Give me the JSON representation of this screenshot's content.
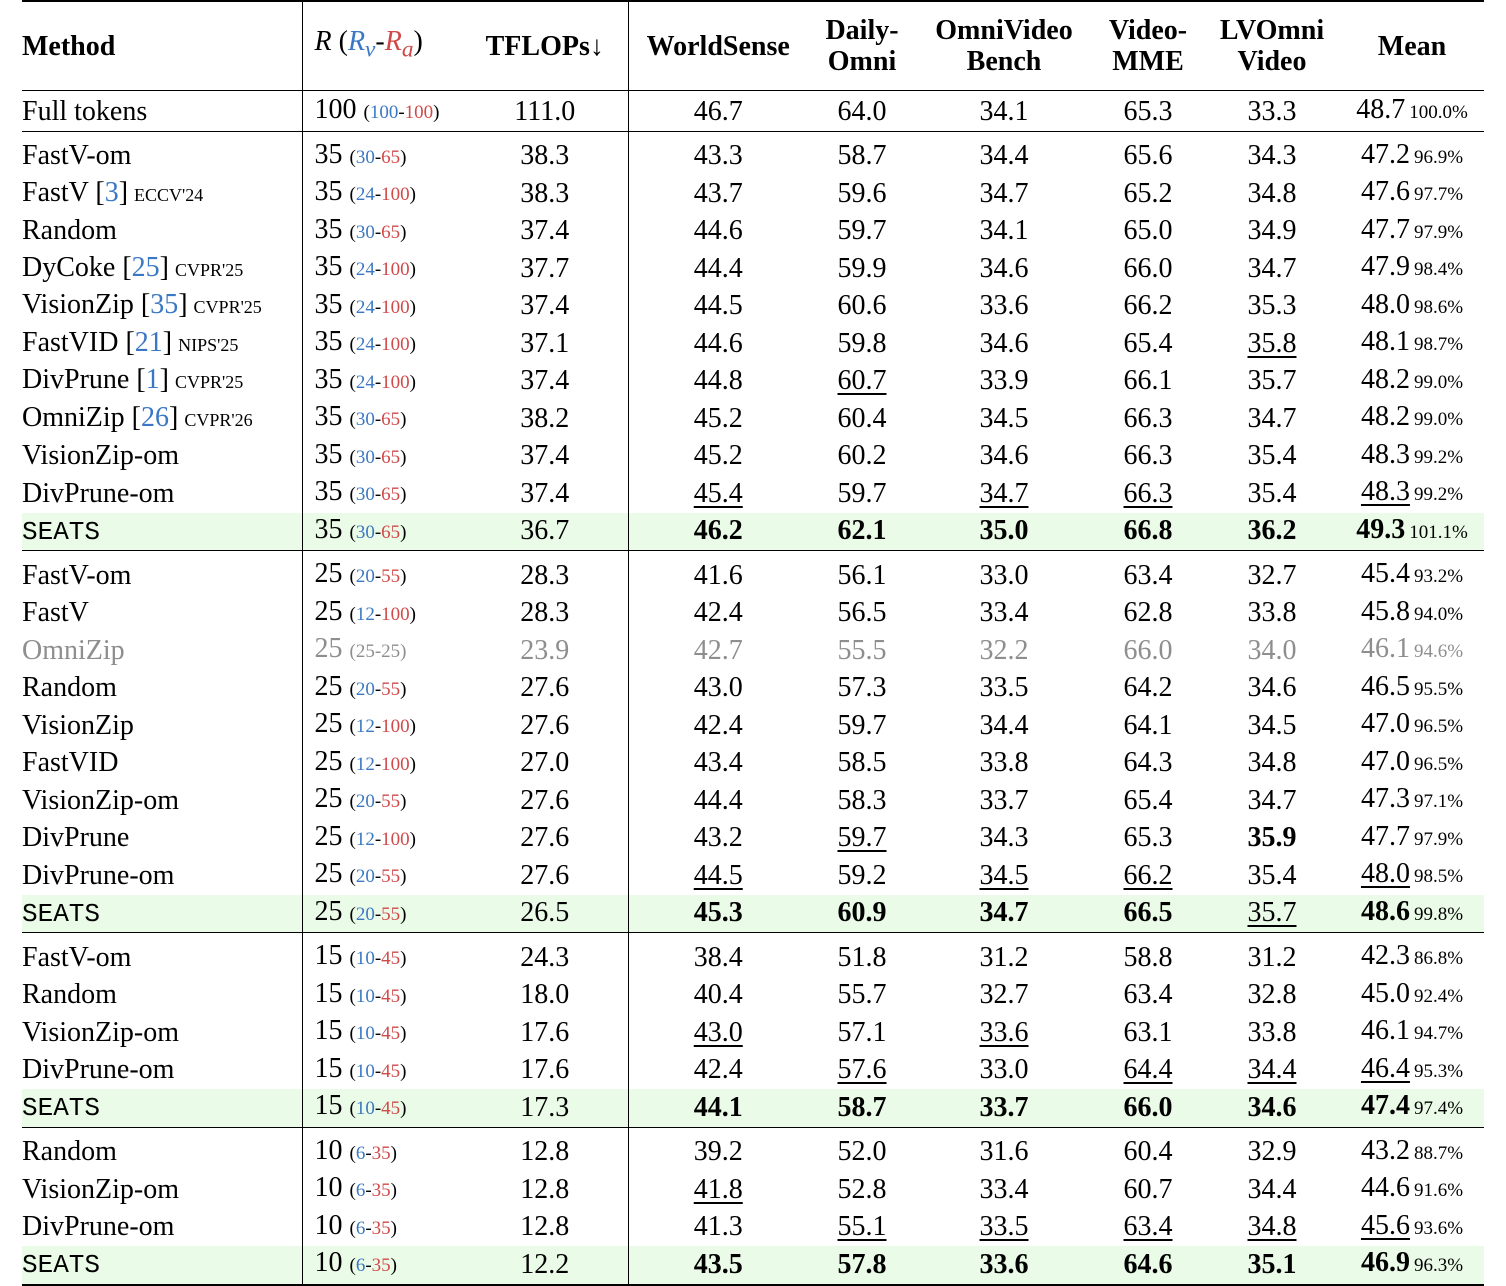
{
  "header": {
    "method": "Method",
    "r_label": "R",
    "rv_label": "R",
    "rv_sub": "v",
    "ra_label": "R",
    "ra_sub": "a",
    "tflops": "TFLOPs↓",
    "worldsense": "WorldSense",
    "dailyomni_1": "Daily-",
    "dailyomni_2": "Omni",
    "omnivideo_1": "OmniVideo",
    "omnivideo_2": "Bench",
    "videomme_1": "Video-",
    "videomme_2": "MME",
    "lvomni_1": "LVOmni",
    "lvomni_2": "Video",
    "mean": "Mean"
  },
  "full": {
    "method": "Full tokens",
    "r": "100",
    "rv": "100",
    "ra": "100",
    "tflops": "111.0",
    "ws": "46.7",
    "do": "64.0",
    "ob": "34.1",
    "vm": "65.3",
    "lv": "33.3",
    "mean": "48.7",
    "pct": "100.0%"
  },
  "g35": [
    {
      "method": "FastV-om",
      "cite": "",
      "venue": "",
      "r": "35",
      "rv": "30",
      "ra": "65",
      "tflops": "38.3",
      "ws": "43.3",
      "do": "58.7",
      "ob": "34.4",
      "vm": "65.6",
      "lv": "34.3",
      "mean": "47.2",
      "pct": "96.9%"
    },
    {
      "method": "FastV",
      "cite": "3",
      "venue": "ECCV'24",
      "r": "35",
      "rv": "24",
      "ra": "100",
      "tflops": "38.3",
      "ws": "43.7",
      "do": "59.6",
      "ob": "34.7",
      "vm": "65.2",
      "lv": "34.8",
      "mean": "47.6",
      "pct": "97.7%"
    },
    {
      "method": "Random",
      "cite": "",
      "venue": "",
      "r": "35",
      "rv": "30",
      "ra": "65",
      "tflops": "37.4",
      "ws": "44.6",
      "do": "59.7",
      "ob": "34.1",
      "vm": "65.0",
      "lv": "34.9",
      "mean": "47.7",
      "pct": "97.9%"
    },
    {
      "method": "DyCoke",
      "cite": "25",
      "venue": "CVPR'25",
      "r": "35",
      "rv": "24",
      "ra": "100",
      "tflops": "37.7",
      "ws": "44.4",
      "do": "59.9",
      "ob": "34.6",
      "vm": "66.0",
      "lv": "34.7",
      "mean": "47.9",
      "pct": "98.4%"
    },
    {
      "method": "VisionZip",
      "cite": "35",
      "venue": "CVPR'25",
      "r": "35",
      "rv": "24",
      "ra": "100",
      "tflops": "37.4",
      "ws": "44.5",
      "do": "60.6",
      "ob": "33.6",
      "vm": "66.2",
      "lv": "35.3",
      "mean": "48.0",
      "pct": "98.6%"
    },
    {
      "method": "FastVID",
      "cite": "21",
      "venue": "NIPS'25",
      "r": "35",
      "rv": "24",
      "ra": "100",
      "tflops": "37.1",
      "ws": "44.6",
      "do": "59.8",
      "ob": "34.6",
      "vm": "65.4",
      "lv": "35.8",
      "mean": "48.1",
      "pct": "98.7%"
    },
    {
      "method": "DivPrune",
      "cite": "1",
      "venue": "CVPR'25",
      "r": "35",
      "rv": "24",
      "ra": "100",
      "tflops": "37.4",
      "ws": "44.8",
      "do": "60.7",
      "ob": "33.9",
      "vm": "66.1",
      "lv": "35.7",
      "mean": "48.2",
      "pct": "99.0%"
    },
    {
      "method": "OmniZip",
      "cite": "26",
      "venue": "CVPR'26",
      "r": "35",
      "rv": "30",
      "ra": "65",
      "tflops": "38.2",
      "ws": "45.2",
      "do": "60.4",
      "ob": "34.5",
      "vm": "66.3",
      "lv": "34.7",
      "mean": "48.2",
      "pct": "99.0%"
    },
    {
      "method": "VisionZip-om",
      "cite": "",
      "venue": "",
      "r": "35",
      "rv": "30",
      "ra": "65",
      "tflops": "37.4",
      "ws": "45.2",
      "do": "60.2",
      "ob": "34.6",
      "vm": "66.3",
      "lv": "35.4",
      "mean": "48.3",
      "pct": "99.2%"
    },
    {
      "method": "DivPrune-om",
      "cite": "",
      "venue": "",
      "r": "35",
      "rv": "30",
      "ra": "65",
      "tflops": "37.4",
      "ws": "45.4",
      "do": "59.7",
      "ob": "34.7",
      "vm": "66.3",
      "lv": "35.4",
      "mean": "48.3",
      "pct": "99.2%"
    },
    {
      "method": "SEATS",
      "cite": "",
      "venue": "",
      "r": "35",
      "rv": "30",
      "ra": "65",
      "tflops": "36.7",
      "ws": "46.2",
      "do": "62.1",
      "ob": "35.0",
      "vm": "66.8",
      "lv": "36.2",
      "mean": "49.3",
      "pct": "101.1%"
    }
  ],
  "g25": [
    {
      "method": "FastV-om",
      "r": "25",
      "rv": "20",
      "ra": "55",
      "tflops": "28.3",
      "ws": "41.6",
      "do": "56.1",
      "ob": "33.0",
      "vm": "63.4",
      "lv": "32.7",
      "mean": "45.4",
      "pct": "93.2%"
    },
    {
      "method": "FastV",
      "r": "25",
      "rv": "12",
      "ra": "100",
      "tflops": "28.3",
      "ws": "42.4",
      "do": "56.5",
      "ob": "33.4",
      "vm": "62.8",
      "lv": "33.8",
      "mean": "45.8",
      "pct": "94.0%"
    },
    {
      "method": "OmniZip",
      "r": "25",
      "rv": "25",
      "ra": "25",
      "tflops": "23.9",
      "ws": "42.7",
      "do": "55.5",
      "ob": "32.2",
      "vm": "66.0",
      "lv": "34.0",
      "mean": "46.1",
      "pct": "94.6%"
    },
    {
      "method": "Random",
      "r": "25",
      "rv": "20",
      "ra": "55",
      "tflops": "27.6",
      "ws": "43.0",
      "do": "57.3",
      "ob": "33.5",
      "vm": "64.2",
      "lv": "34.6",
      "mean": "46.5",
      "pct": "95.5%"
    },
    {
      "method": "VisionZip",
      "r": "25",
      "rv": "12",
      "ra": "100",
      "tflops": "27.6",
      "ws": "42.4",
      "do": "59.7",
      "ob": "34.4",
      "vm": "64.1",
      "lv": "34.5",
      "mean": "47.0",
      "pct": "96.5%"
    },
    {
      "method": "FastVID",
      "r": "25",
      "rv": "12",
      "ra": "100",
      "tflops": "27.0",
      "ws": "43.4",
      "do": "58.5",
      "ob": "33.8",
      "vm": "64.3",
      "lv": "34.8",
      "mean": "47.0",
      "pct": "96.5%"
    },
    {
      "method": "VisionZip-om",
      "r": "25",
      "rv": "20",
      "ra": "55",
      "tflops": "27.6",
      "ws": "44.4",
      "do": "58.3",
      "ob": "33.7",
      "vm": "65.4",
      "lv": "34.7",
      "mean": "47.3",
      "pct": "97.1%"
    },
    {
      "method": "DivPrune",
      "r": "25",
      "rv": "12",
      "ra": "100",
      "tflops": "27.6",
      "ws": "43.2",
      "do": "59.7",
      "ob": "34.3",
      "vm": "65.3",
      "lv": "35.9",
      "mean": "47.7",
      "pct": "97.9%"
    },
    {
      "method": "DivPrune-om",
      "r": "25",
      "rv": "20",
      "ra": "55",
      "tflops": "27.6",
      "ws": "44.5",
      "do": "59.2",
      "ob": "34.5",
      "vm": "66.2",
      "lv": "35.4",
      "mean": "48.0",
      "pct": "98.5%"
    },
    {
      "method": "SEATS",
      "r": "25",
      "rv": "20",
      "ra": "55",
      "tflops": "26.5",
      "ws": "45.3",
      "do": "60.9",
      "ob": "34.7",
      "vm": "66.5",
      "lv": "35.7",
      "mean": "48.6",
      "pct": "99.8%"
    }
  ],
  "g15": [
    {
      "method": "FastV-om",
      "r": "15",
      "rv": "10",
      "ra": "45",
      "tflops": "24.3",
      "ws": "38.4",
      "do": "51.8",
      "ob": "31.2",
      "vm": "58.8",
      "lv": "31.2",
      "mean": "42.3",
      "pct": "86.8%"
    },
    {
      "method": "Random",
      "r": "15",
      "rv": "10",
      "ra": "45",
      "tflops": "18.0",
      "ws": "40.4",
      "do": "55.7",
      "ob": "32.7",
      "vm": "63.4",
      "lv": "32.8",
      "mean": "45.0",
      "pct": "92.4%"
    },
    {
      "method": "VisionZip-om",
      "r": "15",
      "rv": "10",
      "ra": "45",
      "tflops": "17.6",
      "ws": "43.0",
      "do": "57.1",
      "ob": "33.6",
      "vm": "63.1",
      "lv": "33.8",
      "mean": "46.1",
      "pct": "94.7%"
    },
    {
      "method": "DivPrune-om",
      "r": "15",
      "rv": "10",
      "ra": "45",
      "tflops": "17.6",
      "ws": "42.4",
      "do": "57.6",
      "ob": "33.0",
      "vm": "64.4",
      "lv": "34.4",
      "mean": "46.4",
      "pct": "95.3%"
    },
    {
      "method": "SEATS",
      "r": "15",
      "rv": "10",
      "ra": "45",
      "tflops": "17.3",
      "ws": "44.1",
      "do": "58.7",
      "ob": "33.7",
      "vm": "66.0",
      "lv": "34.6",
      "mean": "47.4",
      "pct": "97.4%"
    }
  ],
  "g10": [
    {
      "method": "Random",
      "r": "10",
      "rv": "6",
      "ra": "35",
      "tflops": "12.8",
      "ws": "39.2",
      "do": "52.0",
      "ob": "31.6",
      "vm": "60.4",
      "lv": "32.9",
      "mean": "43.2",
      "pct": "88.7%"
    },
    {
      "method": "VisionZip-om",
      "r": "10",
      "rv": "6",
      "ra": "35",
      "tflops": "12.8",
      "ws": "41.8",
      "do": "52.8",
      "ob": "33.4",
      "vm": "60.7",
      "lv": "34.4",
      "mean": "44.6",
      "pct": "91.6%"
    },
    {
      "method": "DivPrune-om",
      "r": "10",
      "rv": "6",
      "ra": "35",
      "tflops": "12.8",
      "ws": "41.3",
      "do": "55.1",
      "ob": "33.5",
      "vm": "63.4",
      "lv": "34.8",
      "mean": "45.6",
      "pct": "93.6%"
    },
    {
      "method": "SEATS",
      "r": "10",
      "rv": "6",
      "ra": "35",
      "tflops": "12.2",
      "ws": "43.5",
      "do": "57.8",
      "ob": "33.6",
      "vm": "64.6",
      "lv": "35.1",
      "mean": "46.9",
      "pct": "96.3%"
    }
  ]
}
